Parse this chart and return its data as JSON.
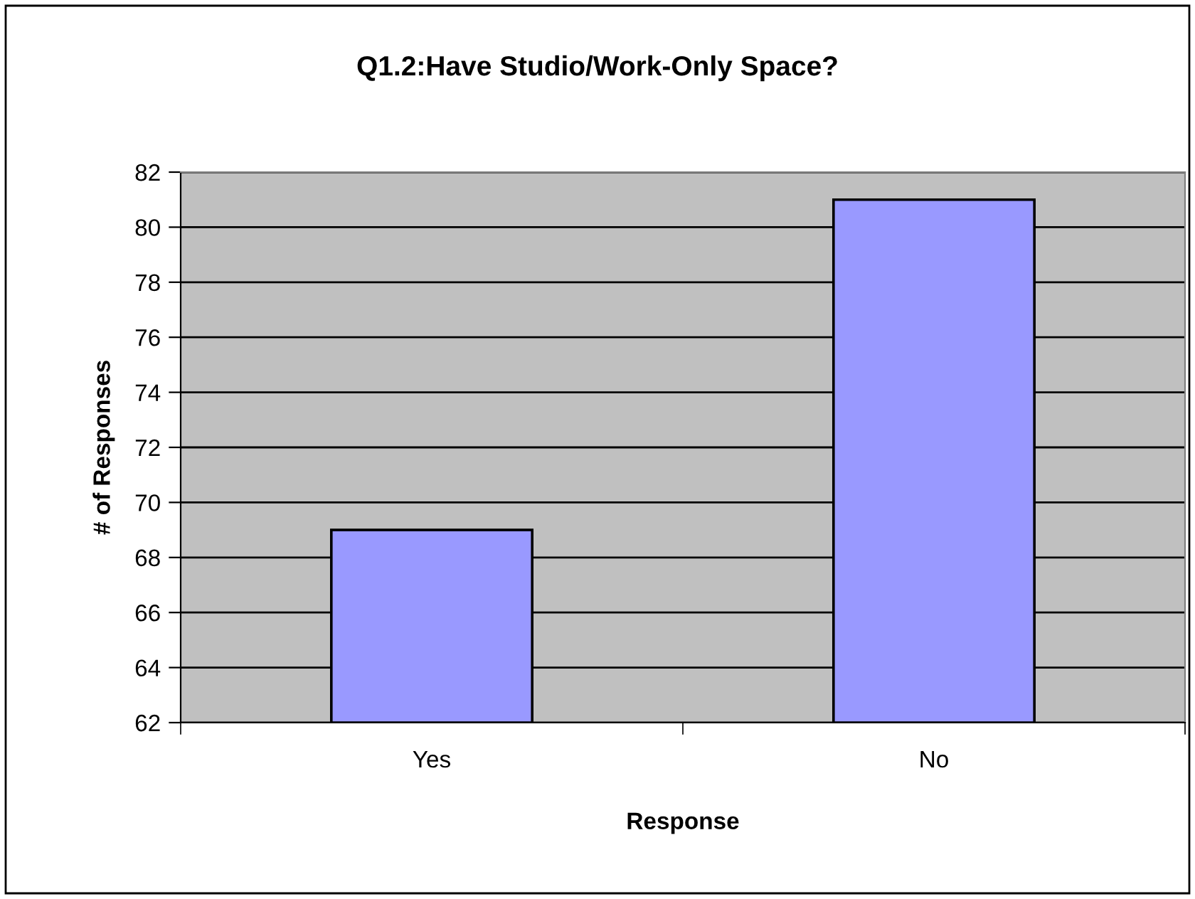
{
  "chart_data": {
    "type": "bar",
    "title": "Q1.2:Have Studio/Work-Only Space?",
    "xlabel": "Response",
    "ylabel": "# of Responses",
    "categories": [
      "Yes",
      "No"
    ],
    "values": [
      69,
      81
    ],
    "color": "#9999ff",
    "ylim": [
      62,
      82
    ],
    "yticks": [
      62,
      64,
      66,
      68,
      70,
      72,
      74,
      76,
      78,
      80,
      82
    ],
    "grid": "y",
    "legend": false
  }
}
